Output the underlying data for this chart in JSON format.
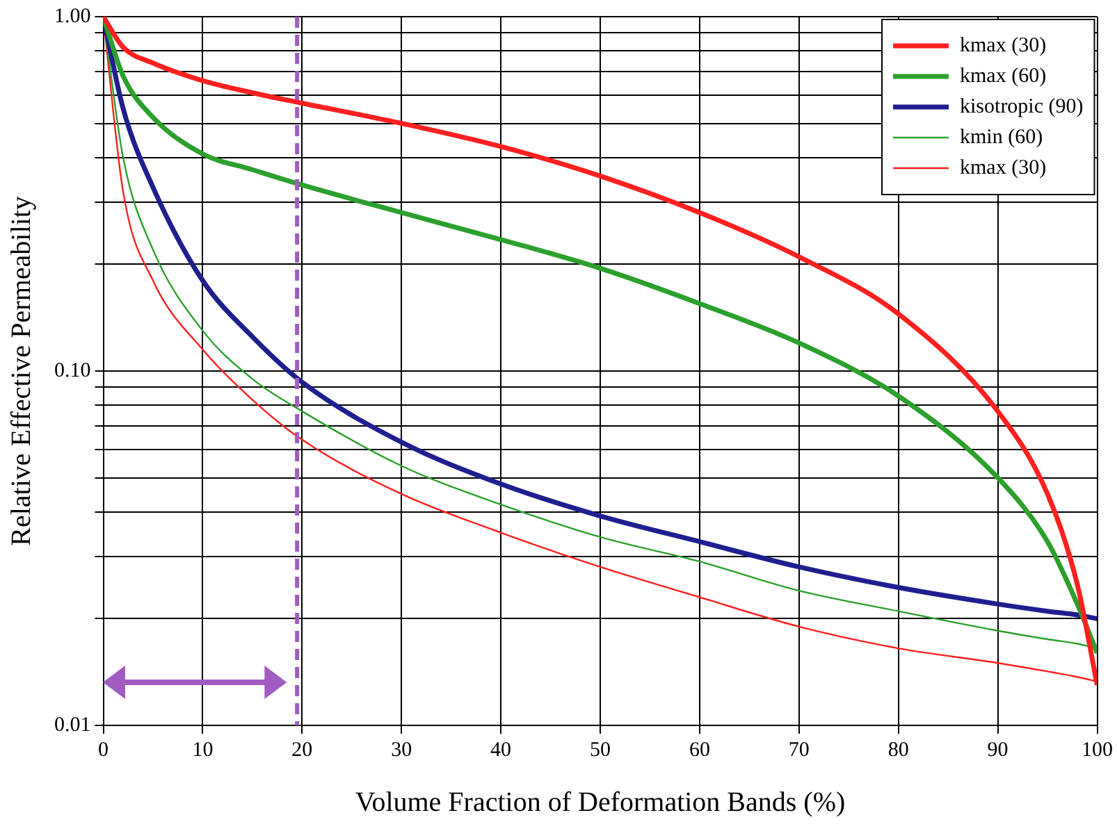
{
  "chart_data": {
    "type": "line",
    "xlabel": "Volume Fraction of Deformation Bands (%)",
    "ylabel": "Relative Effective Permeability",
    "x": [
      0,
      2,
      5,
      10,
      15,
      20,
      30,
      40,
      50,
      60,
      70,
      80,
      90,
      95,
      98,
      100
    ],
    "series": [
      {
        "name": "kmax (30)",
        "color": "#ff2020",
        "values": [
          1.0,
          0.82,
          0.74,
          0.66,
          0.61,
          0.57,
          0.5,
          0.43,
          0.355,
          0.28,
          0.21,
          0.145,
          0.077,
          0.045,
          0.025,
          0.013
        ]
      },
      {
        "name": "kmax (60)",
        "color": "#2ca02c",
        "values": [
          1.0,
          0.68,
          0.52,
          0.41,
          0.37,
          0.335,
          0.28,
          0.235,
          0.195,
          0.155,
          0.12,
          0.085,
          0.05,
          0.033,
          0.022,
          0.016
        ]
      },
      {
        "name": "kisotropic (90)",
        "color": "#1f1f8f",
        "values": [
          1.0,
          0.55,
          0.33,
          0.18,
          0.125,
          0.093,
          0.063,
          0.048,
          0.039,
          0.033,
          0.028,
          0.0245,
          0.022,
          0.021,
          0.0205,
          0.02
        ]
      },
      {
        "name": "kmin (60)",
        "color": "#2ca02c",
        "values": [
          1.0,
          0.4,
          0.22,
          0.13,
          0.095,
          0.077,
          0.054,
          0.042,
          0.034,
          0.029,
          0.024,
          0.021,
          0.0185,
          0.0175,
          0.017,
          0.0165
        ]
      },
      {
        "name": "kmax (30)",
        "color": "#ff2020",
        "values": [
          1.0,
          0.32,
          0.18,
          0.115,
          0.083,
          0.064,
          0.045,
          0.035,
          0.028,
          0.023,
          0.019,
          0.0165,
          0.015,
          0.0142,
          0.0137,
          0.0133
        ]
      }
    ],
    "log": "y",
    "ylim": [
      0.01,
      1
    ],
    "yticks": [
      {
        "value": 0.01,
        "label": "0.01"
      },
      {
        "value": 0.02,
        "label": null
      },
      {
        "value": 0.03,
        "label": null
      },
      {
        "value": 0.04,
        "label": null
      },
      {
        "value": 0.05,
        "label": null
      },
      {
        "value": 0.06,
        "label": null
      },
      {
        "value": 0.07,
        "label": null
      },
      {
        "value": 0.08,
        "label": null
      },
      {
        "value": 0.09,
        "label": null
      },
      {
        "value": 0.1,
        "label": "0.10"
      },
      {
        "value": 0.2,
        "label": null
      },
      {
        "value": 0.3,
        "label": null
      },
      {
        "value": 0.4,
        "label": null
      },
      {
        "value": 0.5,
        "label": null
      },
      {
        "value": 0.6,
        "label": null
      },
      {
        "value": 0.7,
        "label": null
      },
      {
        "value": 0.8,
        "label": null
      },
      {
        "value": 0.9,
        "label": null
      },
      {
        "value": 1,
        "label": "1.00"
      }
    ],
    "xlim": [
      0,
      100
    ],
    "xticks": [
      0,
      10,
      20,
      30,
      40,
      50,
      60,
      70,
      80,
      90,
      100
    ],
    "grid": true,
    "legend": "top right",
    "marker": "none",
    "line_style": "solid",
    "ref_lines": [
      {
        "axis": "x",
        "value": 19.5,
        "color": "#a05cc0",
        "line_style": "dashed"
      }
    ]
  }
}
